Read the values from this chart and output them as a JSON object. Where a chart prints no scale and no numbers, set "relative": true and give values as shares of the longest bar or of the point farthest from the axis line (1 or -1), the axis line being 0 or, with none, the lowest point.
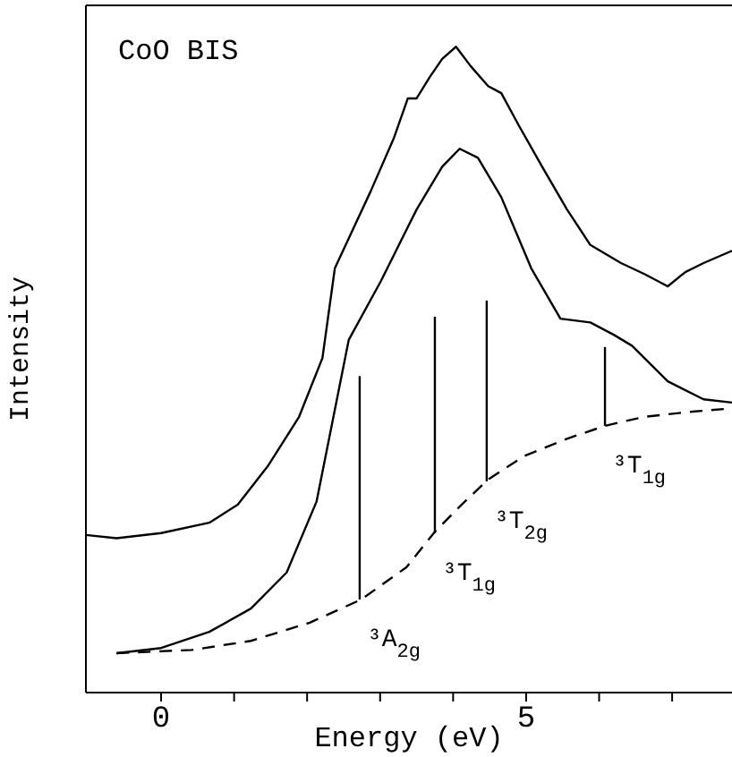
{
  "chart_data": {
    "type": "line",
    "title": "CoO BIS",
    "xlabel": "Energy (eV)",
    "ylabel": "Intensity",
    "relative": true,
    "xlim": [
      -1.03,
      7.82
    ],
    "xticks": [
      0,
      {
        "value": 1,
        "label": null
      },
      {
        "value": 2,
        "label": null
      },
      {
        "value": 3,
        "label": null
      },
      {
        "value": 4,
        "label": null
      },
      5,
      {
        "value": 6,
        "label": null
      },
      {
        "value": 7,
        "label": null
      }
    ],
    "marker": "none",
    "series": [
      {
        "color": "#000000",
        "x": [
          -1.03,
          -0.61,
          0,
          0.66,
          1.05,
          1.47,
          1.89,
          2.21,
          2.38,
          2.87,
          3.19,
          3.38,
          3.5,
          3.68,
          3.85,
          4.04,
          4.24,
          4.48,
          4.66,
          4.9,
          5.22,
          5.56,
          5.88,
          6.3,
          6.62,
          6.94,
          7.18,
          7.43,
          7.82
        ],
        "values": [
          0.244,
          0.239,
          0.247,
          0.263,
          0.291,
          0.352,
          0.427,
          0.518,
          0.657,
          0.776,
          0.859,
          0.92,
          0.92,
          0.953,
          0.981,
          1.0,
          0.97,
          0.939,
          0.928,
          0.878,
          0.814,
          0.748,
          0.693,
          0.665,
          0.648,
          0.629,
          0.651,
          0.665,
          0.684
        ]
      },
      {
        "color": "#000000",
        "x": [
          -0.61,
          0,
          0.66,
          1.23,
          1.72,
          2.13,
          2.57,
          3.01,
          3.5,
          3.85,
          4.09,
          4.34,
          4.66,
          5.07,
          5.47,
          5.88,
          6.2,
          6.45,
          6.94,
          7.43,
          7.82
        ],
        "values": [
          0.061,
          0.069,
          0.094,
          0.13,
          0.186,
          0.296,
          0.546,
          0.637,
          0.748,
          0.814,
          0.842,
          0.828,
          0.767,
          0.657,
          0.579,
          0.573,
          0.554,
          0.537,
          0.482,
          0.454,
          0.449
        ]
      },
      {
        "color": "#000000",
        "line_style": "dashed",
        "x": [
          -0.61,
          0.42,
          1.23,
          2.03,
          2.74,
          3.36,
          3.75,
          4.09,
          4.48,
          4.97,
          5.56,
          6.08,
          6.62,
          7.28,
          7.82
        ],
        "values": [
          0.061,
          0.066,
          0.08,
          0.108,
          0.144,
          0.194,
          0.249,
          0.288,
          0.33,
          0.366,
          0.393,
          0.413,
          0.427,
          0.435,
          0.44
        ]
      },
      {
        "color": "#000000",
        "x": [
          2.72,
          2.72
        ],
        "values": [
          0.144,
          0.49
        ]
      },
      {
        "color": "#000000",
        "x": [
          3.75,
          3.75
        ],
        "values": [
          0.247,
          0.582
        ]
      },
      {
        "color": "#000000",
        "x": [
          4.46,
          4.46
        ],
        "values": [
          0.327,
          0.607
        ]
      },
      {
        "color": "#000000",
        "x": [
          6.08,
          6.08
        ],
        "values": [
          0.413,
          0.535
        ]
      }
    ],
    "annotations": [
      {
        "text": "³A$_{2g}$",
        "x": 2.72,
        "y": 0.144
      },
      {
        "text": "³T$_{1g}$",
        "x": 3.75,
        "y": 0.247
      },
      {
        "text": "³T$_{2g}$",
        "x": 4.46,
        "y": 0.327
      },
      {
        "text": "³T$_{1g}$",
        "x": 6.08,
        "y": 0.413
      }
    ]
  }
}
